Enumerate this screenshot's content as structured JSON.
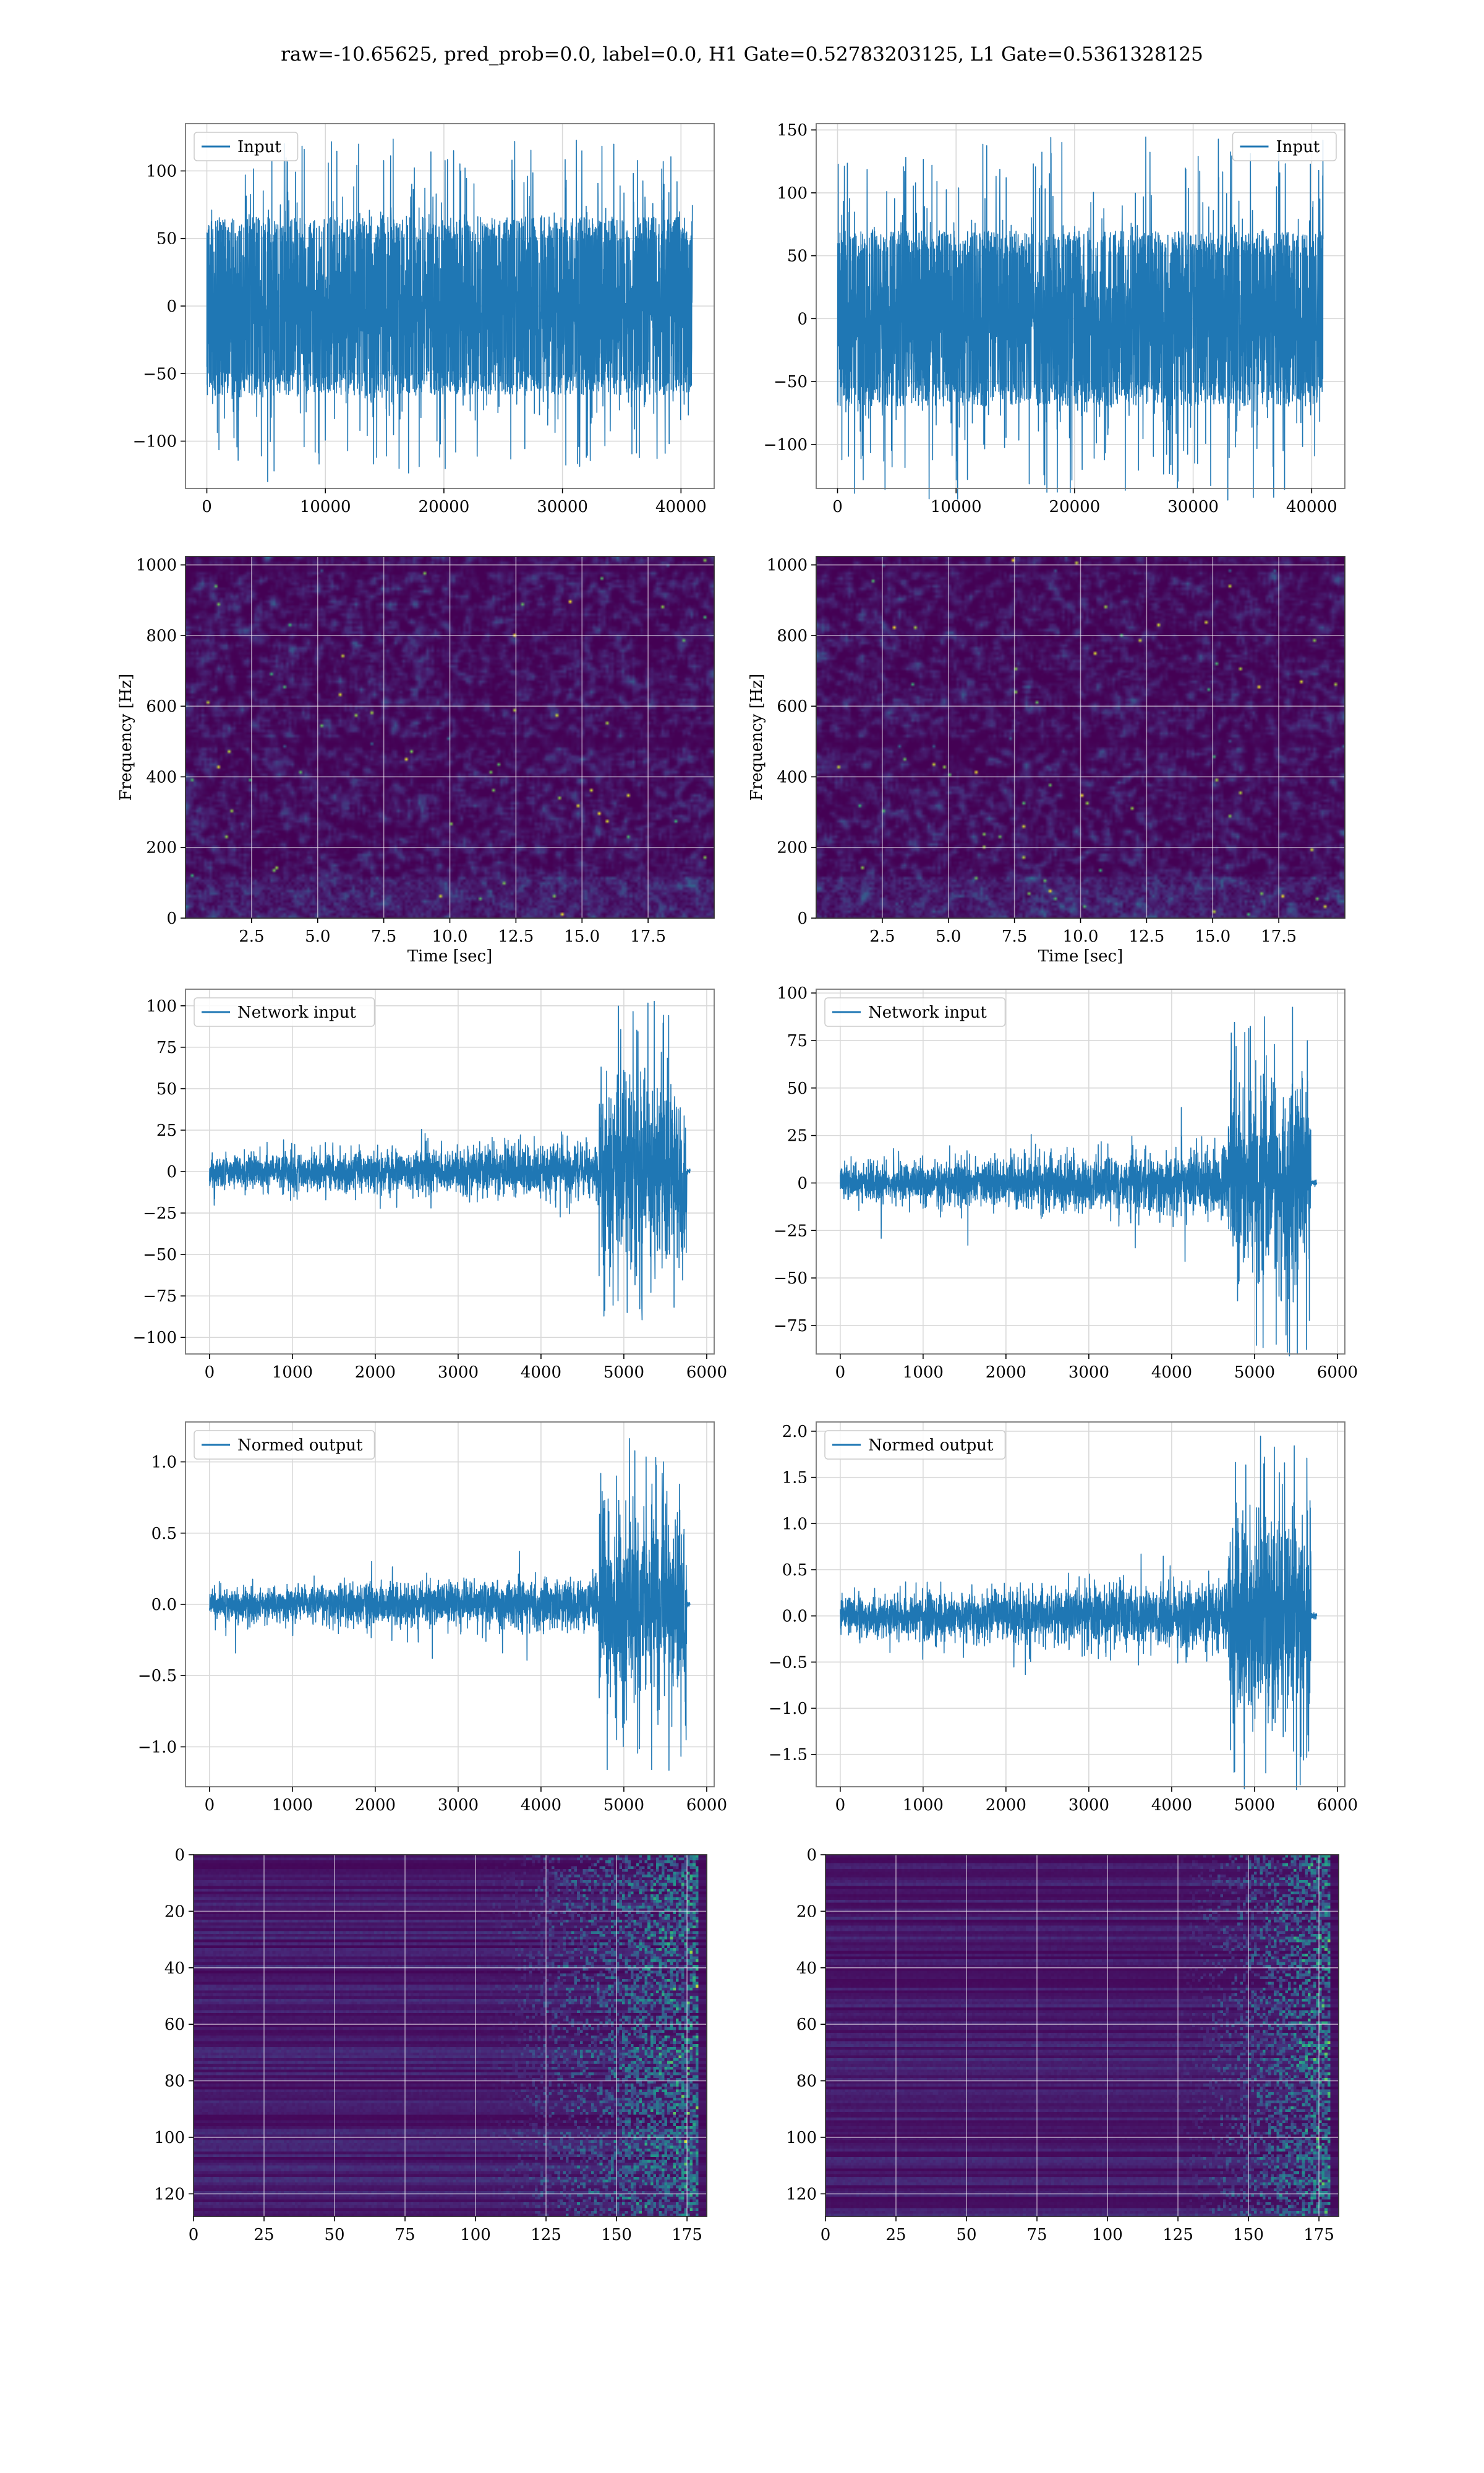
{
  "figure": {
    "title": "raw=-10.65625, pred_prob=0.0, label=0.0, H1 Gate=0.52783203125, L1 Gate=0.5361328125"
  },
  "colors": {
    "line": "#1f77b4",
    "grid": "#d9d9d9",
    "spines": "#777777",
    "viridis_dark": "#440154",
    "viridis_mid": "#21918c",
    "viridis_bright": "#fde725"
  },
  "chart_data": [
    {
      "id": "h1-input",
      "type": "line",
      "series": [
        {
          "name": "Input",
          "style": "dense-noise",
          "amp": 55,
          "peak": 125,
          "n": 40960
        }
      ],
      "xlim": [
        -1800,
        42800
      ],
      "ylim": [
        -135,
        135
      ],
      "xticks": [
        0,
        10000,
        20000,
        30000,
        40000
      ],
      "xtick_labels": [
        "0",
        "10000",
        "20000",
        "30000",
        "40000"
      ],
      "yticks": [
        -100,
        -50,
        0,
        50,
        100
      ],
      "ytick_labels": [
        "−100",
        "−50",
        "0",
        "50",
        "100"
      ],
      "legend": "upper-left",
      "grid": true,
      "xlabel": "",
      "ylabel": ""
    },
    {
      "id": "l1-input",
      "type": "line",
      "series": [
        {
          "name": "Input",
          "style": "dense-noise",
          "amp": 58,
          "peak": 145,
          "n": 40960
        }
      ],
      "xlim": [
        -1800,
        42800
      ],
      "ylim": [
        -135,
        155
      ],
      "xticks": [
        0,
        10000,
        20000,
        30000,
        40000
      ],
      "xtick_labels": [
        "0",
        "10000",
        "20000",
        "30000",
        "40000"
      ],
      "yticks": [
        -100,
        -50,
        0,
        50,
        100,
        150
      ],
      "ytick_labels": [
        "−100",
        "−50",
        "0",
        "50",
        "100",
        "150"
      ],
      "legend": "upper-right",
      "grid": true,
      "xlabel": "",
      "ylabel": ""
    },
    {
      "id": "h1-spectrogram",
      "type": "heatmap",
      "style": "spectrogram",
      "xlim": [
        0,
        20
      ],
      "ylim": [
        0,
        1024
      ],
      "xticks": [
        2.5,
        5.0,
        7.5,
        10.0,
        12.5,
        15.0,
        17.5
      ],
      "xtick_labels": [
        "2.5",
        "5.0",
        "7.5",
        "10.0",
        "12.5",
        "15.0",
        "17.5"
      ],
      "yticks": [
        0,
        200,
        400,
        600,
        800,
        1000
      ],
      "ytick_labels": [
        "0",
        "200",
        "400",
        "600",
        "800",
        "1000"
      ],
      "xlabel": "Time [sec]",
      "ylabel": "Frequency [Hz]",
      "grid": true,
      "seed": 11
    },
    {
      "id": "l1-spectrogram",
      "type": "heatmap",
      "style": "spectrogram",
      "xlim": [
        0,
        20
      ],
      "ylim": [
        0,
        1024
      ],
      "xticks": [
        2.5,
        5.0,
        7.5,
        10.0,
        12.5,
        15.0,
        17.5
      ],
      "xtick_labels": [
        "2.5",
        "5.0",
        "7.5",
        "10.0",
        "12.5",
        "15.0",
        "17.5"
      ],
      "yticks": [
        0,
        200,
        400,
        600,
        800,
        1000
      ],
      "ytick_labels": [
        "0",
        "200",
        "400",
        "600",
        "800",
        "1000"
      ],
      "xlabel": "Time [sec]",
      "ylabel": "Frequency [Hz]",
      "grid": true,
      "seed": 23
    },
    {
      "id": "h1-network-input",
      "type": "line",
      "series": [
        {
          "name": "Network input",
          "style": "ramp-burst",
          "amp": 10,
          "burst_amp": 45,
          "peak": 103,
          "burst_start": 4700,
          "end": 5760,
          "tail": 5800,
          "n": 5800
        }
      ],
      "xlim": [
        -290,
        6090
      ],
      "ylim": [
        -110,
        110
      ],
      "xticks": [
        0,
        1000,
        2000,
        3000,
        4000,
        5000,
        6000
      ],
      "xtick_labels": [
        "0",
        "1000",
        "2000",
        "3000",
        "4000",
        "5000",
        "6000"
      ],
      "yticks": [
        -100,
        -75,
        -50,
        -25,
        0,
        25,
        50,
        75,
        100
      ],
      "ytick_labels": [
        "−100",
        "−75",
        "−50",
        "−25",
        "0",
        "25",
        "50",
        "75",
        "100"
      ],
      "legend": "upper-left",
      "grid": true,
      "xlabel": "",
      "ylabel": ""
    },
    {
      "id": "l1-network-input",
      "type": "line",
      "series": [
        {
          "name": "Network input",
          "style": "ramp-burst",
          "amp": 10,
          "burst_amp": 40,
          "peak": 95,
          "burst_start": 4680,
          "end": 5680,
          "tail": 5750,
          "n": 5750
        }
      ],
      "xlim": [
        -290,
        6090
      ],
      "ylim": [
        -90,
        102
      ],
      "xticks": [
        0,
        1000,
        2000,
        3000,
        4000,
        5000,
        6000
      ],
      "xtick_labels": [
        "0",
        "1000",
        "2000",
        "3000",
        "4000",
        "5000",
        "6000"
      ],
      "yticks": [
        -75,
        -50,
        -25,
        0,
        25,
        50,
        75,
        100
      ],
      "ytick_labels": [
        "−75",
        "−50",
        "−25",
        "0",
        "25",
        "50",
        "75",
        "100"
      ],
      "legend": "upper-left",
      "grid": true,
      "xlabel": "",
      "ylabel": ""
    },
    {
      "id": "h1-normed-output",
      "type": "line",
      "series": [
        {
          "name": "Normed output",
          "style": "ramp-burst",
          "amp": 0.11,
          "burst_amp": 0.5,
          "peak": 1.17,
          "burst_start": 4700,
          "end": 5760,
          "tail": 5800,
          "n": 5800
        }
      ],
      "xlim": [
        -290,
        6090
      ],
      "ylim": [
        -1.28,
        1.28
      ],
      "xticks": [
        0,
        1000,
        2000,
        3000,
        4000,
        5000,
        6000
      ],
      "xtick_labels": [
        "0",
        "1000",
        "2000",
        "3000",
        "4000",
        "5000",
        "6000"
      ],
      "yticks": [
        -1.0,
        -0.5,
        0.0,
        0.5,
        1.0
      ],
      "ytick_labels": [
        "−1.0",
        "−0.5",
        "0.0",
        "0.5",
        "1.0"
      ],
      "legend": "upper-left",
      "grid": true,
      "xlabel": "",
      "ylabel": ""
    },
    {
      "id": "l1-normed-output",
      "type": "line",
      "series": [
        {
          "name": "Normed output",
          "style": "ramp-burst",
          "amp": 0.22,
          "burst_amp": 0.85,
          "peak": 1.95,
          "burst_start": 4680,
          "end": 5680,
          "tail": 5750,
          "n": 5750
        }
      ],
      "xlim": [
        -290,
        6090
      ],
      "ylim": [
        -1.85,
        2.1
      ],
      "xticks": [
        0,
        1000,
        2000,
        3000,
        4000,
        5000,
        6000
      ],
      "xtick_labels": [
        "0",
        "1000",
        "2000",
        "3000",
        "4000",
        "5000",
        "6000"
      ],
      "yticks": [
        -1.5,
        -1.0,
        -0.5,
        0.0,
        0.5,
        1.0,
        1.5,
        2.0
      ],
      "ytick_labels": [
        "−1.5",
        "−1.0",
        "−0.5",
        "0.0",
        "0.5",
        "1.0",
        "1.5",
        "2.0"
      ],
      "legend": "upper-left",
      "grid": true,
      "xlabel": "",
      "ylabel": ""
    },
    {
      "id": "h1-feature-map",
      "type": "heatmap",
      "style": "feature-map",
      "rows": 128,
      "cols": 182,
      "onset_col": 100,
      "xlim": [
        0,
        182
      ],
      "ylim": [
        128,
        0
      ],
      "xticks": [
        0,
        25,
        50,
        75,
        100,
        125,
        150,
        175
      ],
      "xtick_labels": [
        "0",
        "25",
        "50",
        "75",
        "100",
        "125",
        "150",
        "175"
      ],
      "yticks": [
        0,
        20,
        40,
        60,
        80,
        100,
        120
      ],
      "ytick_labels": [
        "0",
        "20",
        "40",
        "60",
        "80",
        "100",
        "120"
      ],
      "xlabel": "",
      "ylabel": "",
      "grid": true,
      "seed": 37
    },
    {
      "id": "l1-feature-map",
      "type": "heatmap",
      "style": "feature-map",
      "rows": 128,
      "cols": 182,
      "onset_col": 122,
      "xlim": [
        0,
        182
      ],
      "ylim": [
        128,
        0
      ],
      "xticks": [
        0,
        25,
        50,
        75,
        100,
        125,
        150,
        175
      ],
      "xtick_labels": [
        "0",
        "25",
        "50",
        "75",
        "100",
        "125",
        "150",
        "175"
      ],
      "yticks": [
        0,
        20,
        40,
        60,
        80,
        100,
        120
      ],
      "ytick_labels": [
        "0",
        "20",
        "40",
        "60",
        "80",
        "100",
        "120"
      ],
      "xlabel": "",
      "ylabel": "",
      "grid": true,
      "seed": 53
    }
  ]
}
